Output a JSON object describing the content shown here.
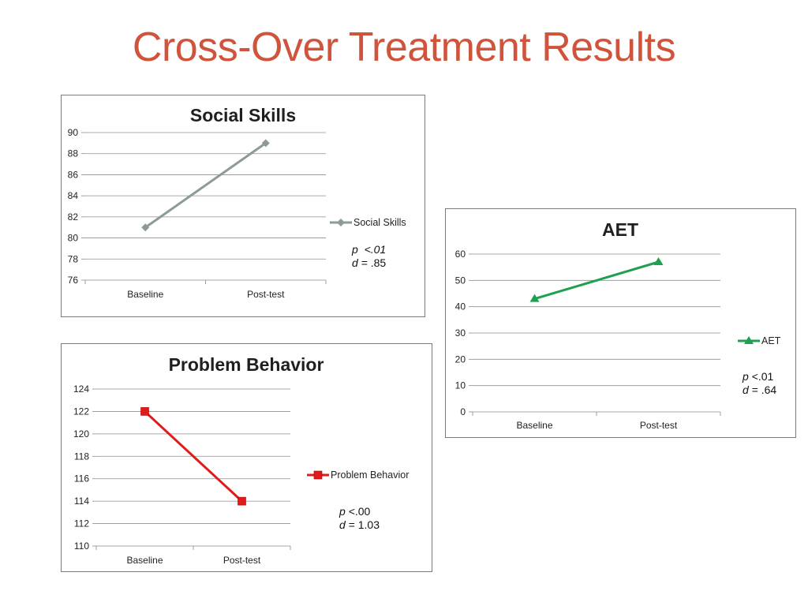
{
  "page": {
    "title": "Cross-Over Treatment Results"
  },
  "chart_data": [
    {
      "id": "social",
      "type": "line",
      "title": "Social Skills",
      "categories": [
        "Baseline",
        "Post-test"
      ],
      "series": [
        {
          "name": "Social Skills",
          "values": [
            81,
            89
          ],
          "color": "#8c9a98",
          "marker": "diamond"
        }
      ],
      "ylim": [
        76,
        90
      ],
      "ystep": 2,
      "grid": true,
      "legend": "right",
      "stats": {
        "p_symbol": "p",
        "p_value": "<.01",
        "d_symbol": "d",
        "d_value": "= .85"
      }
    },
    {
      "id": "aet",
      "type": "line",
      "title": "AET",
      "categories": [
        "Baseline",
        "Post-test"
      ],
      "series": [
        {
          "name": "AET",
          "values": [
            43,
            57
          ],
          "color": "#1fa050",
          "marker": "triangle"
        }
      ],
      "ylim": [
        0,
        60
      ],
      "ystep": 10,
      "grid": true,
      "legend": "right",
      "stats": {
        "p_symbol": "p",
        "p_value": "<.01",
        "d_symbol": "d",
        "d_value": "= .64"
      }
    },
    {
      "id": "pb",
      "type": "line",
      "title": "Problem Behavior",
      "categories": [
        "Baseline",
        "Post-test"
      ],
      "series": [
        {
          "name": "Problem Behavior",
          "values": [
            122,
            114
          ],
          "color": "#e01b1b",
          "marker": "square"
        }
      ],
      "ylim": [
        110,
        124
      ],
      "ystep": 2,
      "grid": true,
      "legend": "right",
      "stats": {
        "p_symbol": "p",
        "p_value": "<.00",
        "d_symbol": "d",
        "d_value": "= 1.03"
      }
    }
  ]
}
